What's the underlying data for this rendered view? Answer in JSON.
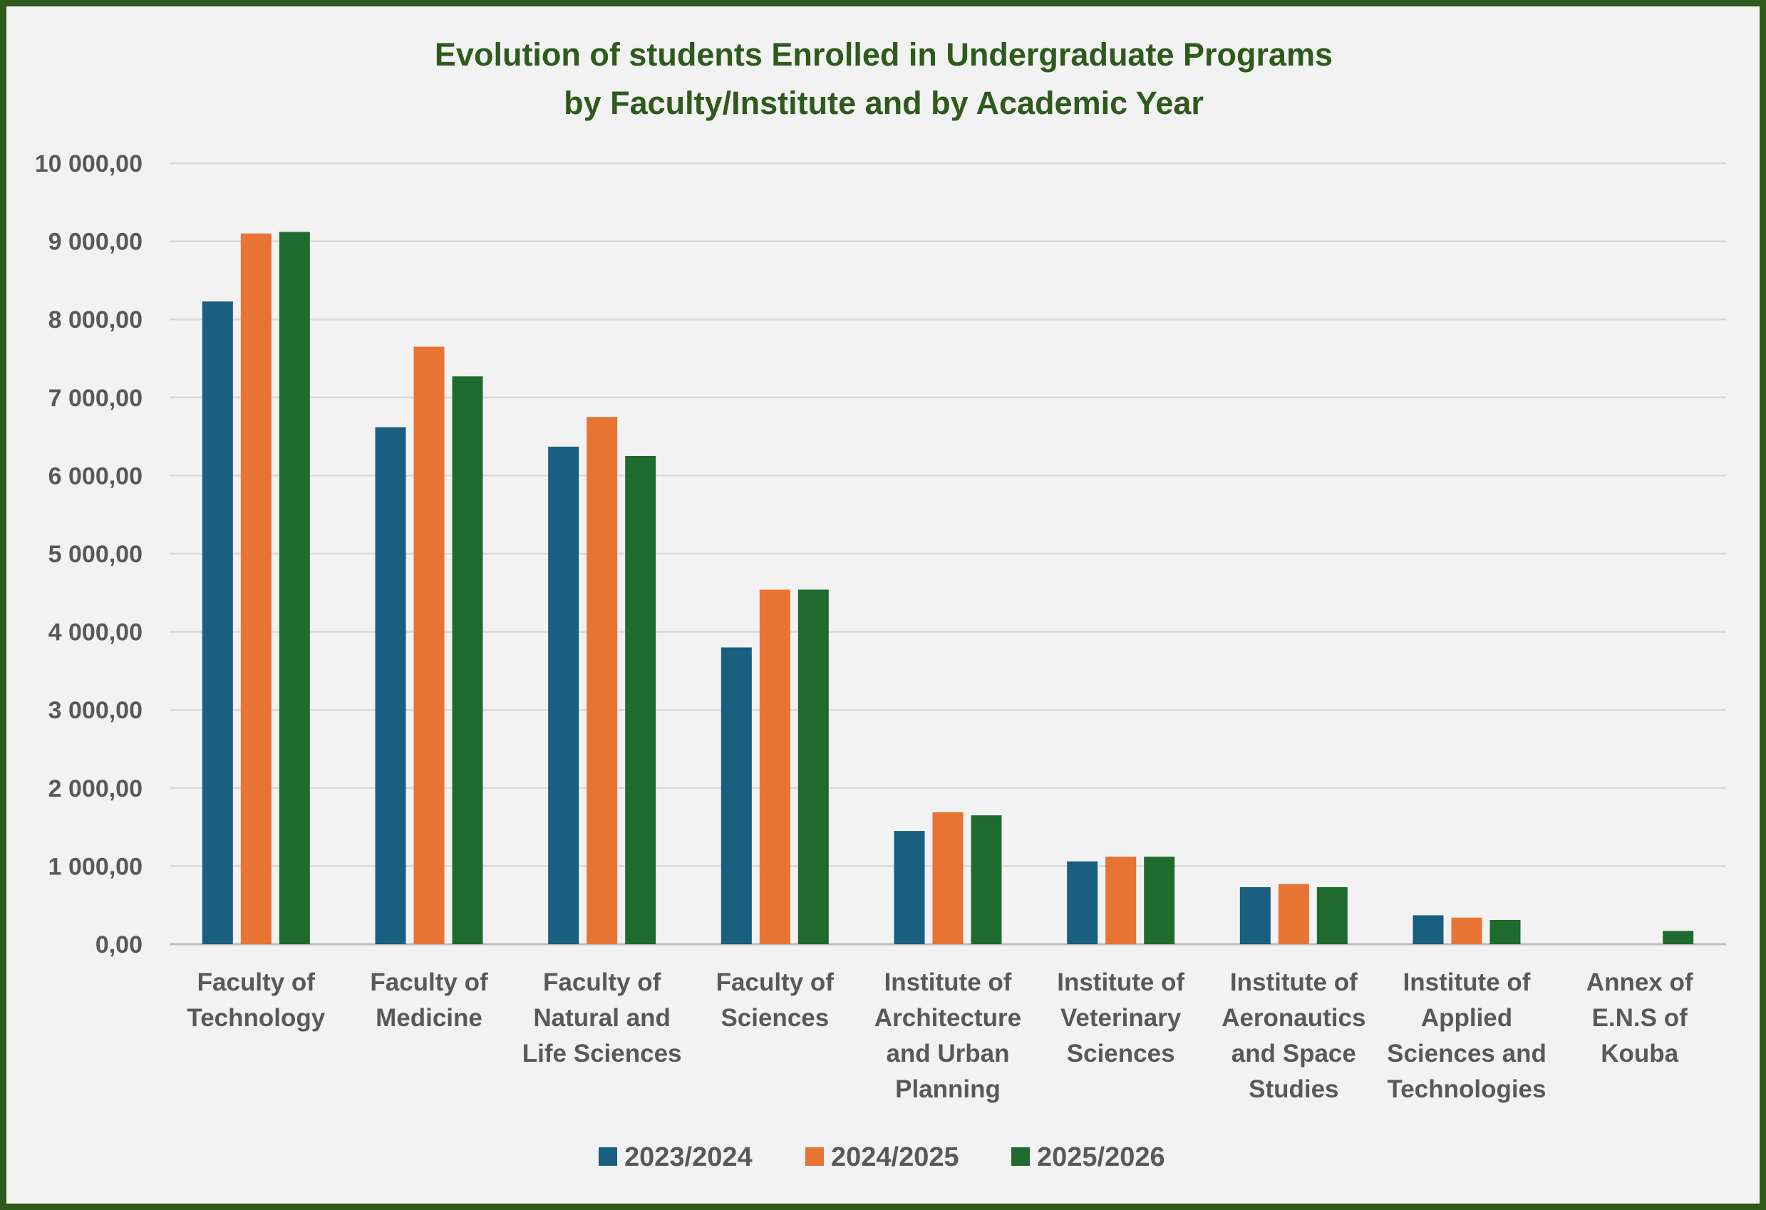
{
  "chart_data": {
    "type": "bar",
    "title": [
      "Evolution of students Enrolled in Undergraduate Programs",
      "by Faculty/Institute and by Academic Year"
    ],
    "xlabel": "",
    "ylabel": "",
    "ylim": [
      0,
      10000
    ],
    "y_ticks": [
      "0,00",
      "1 000,00",
      "2 000,00",
      "3 000,00",
      "4 000,00",
      "5 000,00",
      "6 000,00",
      "7 000,00",
      "8 000,00",
      "9 000,00",
      "10 000,00"
    ],
    "grid": true,
    "legend_position": "bottom",
    "categories": [
      [
        "Faculty of",
        "Technology"
      ],
      [
        "Faculty of",
        "Medicine"
      ],
      [
        "Faculty of",
        "Natural and",
        "Life Sciences"
      ],
      [
        "Faculty of",
        "Sciences"
      ],
      [
        "Institute of",
        "Architecture",
        "and Urban",
        "Planning"
      ],
      [
        "Institute of",
        "Veterinary",
        "Sciences"
      ],
      [
        "Institute of",
        "Aeronautics",
        "and Space",
        "Studies"
      ],
      [
        "Institute of",
        "Applied",
        "Sciences and",
        "Technologies"
      ],
      [
        "Annex of",
        "E.N.S of",
        "Kouba"
      ]
    ],
    "series": [
      {
        "name": "2023/2024",
        "color": "#1a5e80",
        "values": [
          8230,
          6620,
          6370,
          3800,
          1450,
          1060,
          730,
          370,
          0
        ]
      },
      {
        "name": "2024/2025",
        "color": "#e87433",
        "values": [
          9100,
          7650,
          6750,
          4540,
          1690,
          1120,
          770,
          340,
          0
        ]
      },
      {
        "name": "2025/2026",
        "color": "#1f6b2d",
        "values": [
          9120,
          7270,
          6250,
          4540,
          1650,
          1120,
          730,
          310,
          170
        ]
      }
    ]
  }
}
